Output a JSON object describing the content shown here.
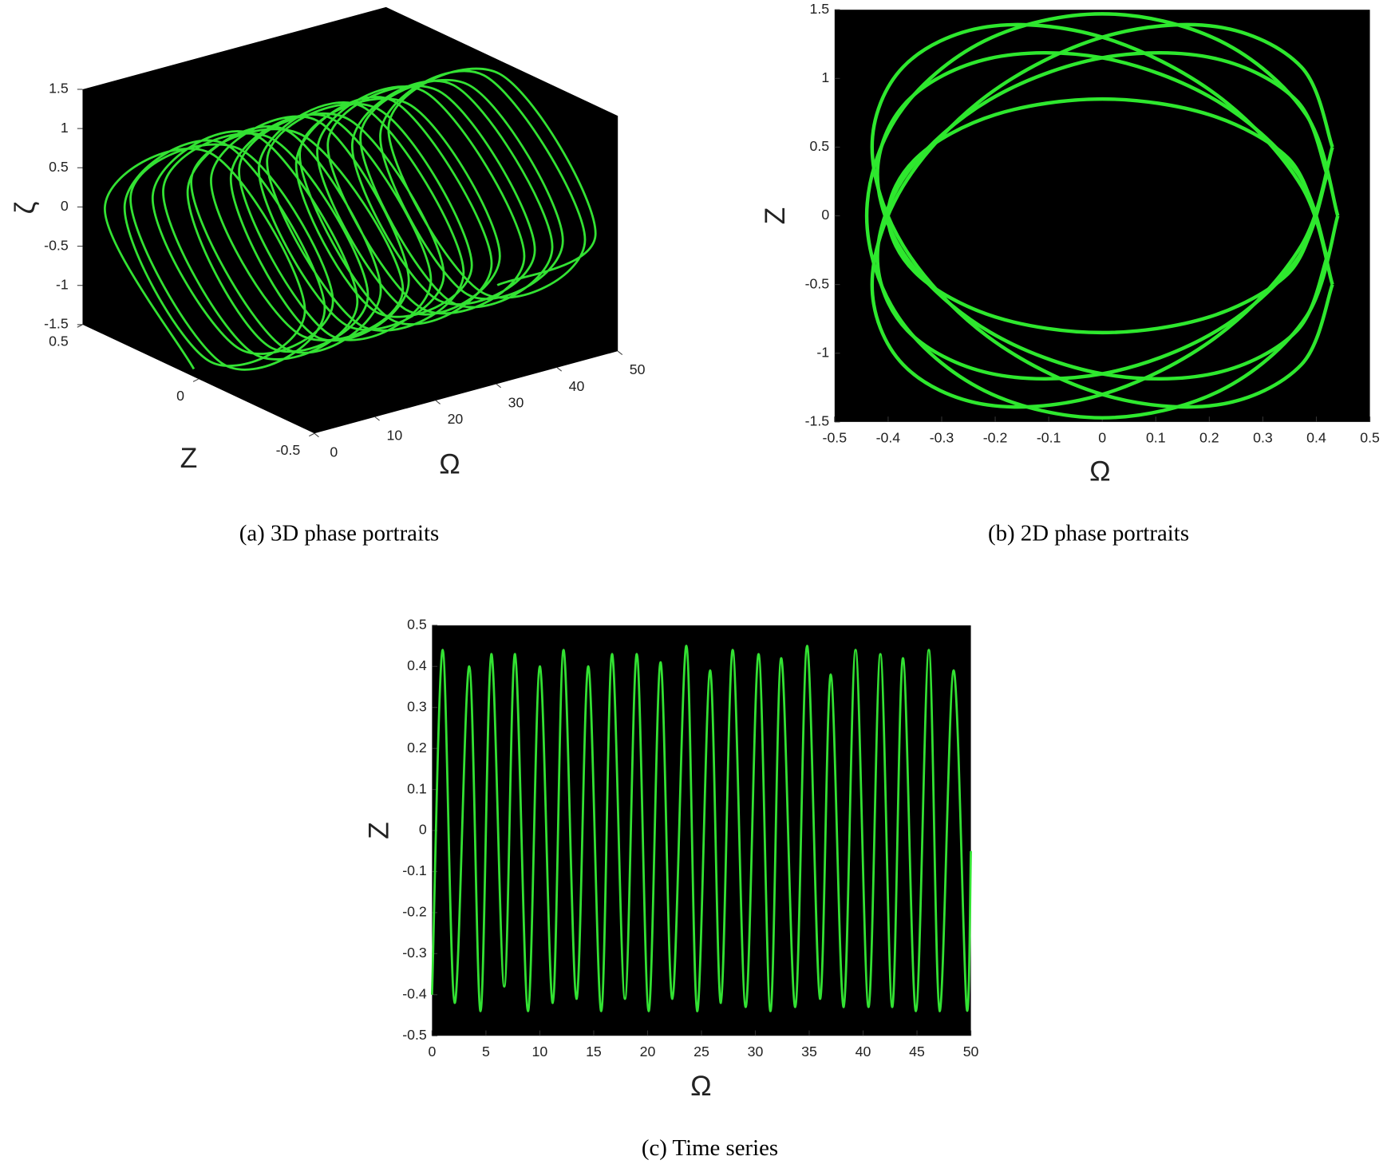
{
  "chart_data": [
    {
      "type": "line3d",
      "caption": "(a)  3D phase portraits",
      "xlabel": "Ω",
      "ylabel": "Z",
      "zlabel": "ζ",
      "color": "#33e233",
      "xlim": [
        0,
        50
      ],
      "ylim": [
        -0.5,
        0.5
      ],
      "zlim": [
        -1.5,
        1.5
      ],
      "xticks": [
        0,
        10,
        20,
        30,
        40,
        50
      ],
      "yticks": [
        -0.5,
        0,
        0.5
      ],
      "zticks": [
        -1.5,
        -1,
        -0.5,
        0,
        0.5,
        1,
        1.5
      ],
      "x": [
        0,
        0.625,
        1.25,
        1.875,
        2.5,
        3.125,
        3.75,
        4.375,
        5,
        5.625,
        6.25,
        6.875,
        7.5,
        8.125,
        8.75,
        9.375,
        10,
        10.625,
        11.25,
        11.875,
        12.5,
        13.125,
        13.75,
        14.375,
        15,
        15.625,
        16.25,
        16.875,
        17.5,
        18.125,
        18.75,
        19.375,
        20,
        20.625,
        21.25,
        21.875,
        22.5,
        23.125,
        23.75,
        24.375,
        25,
        25.625,
        26.25,
        26.875,
        27.5,
        28.125,
        28.75,
        29.375,
        30,
        30.625,
        31.25,
        31.875,
        32.5,
        33.125,
        33.75,
        34.375,
        35,
        35.625,
        36.25,
        36.875,
        37.5,
        38.125,
        38.75,
        39.375,
        40,
        40.625,
        41.25,
        41.875,
        42.5,
        43.125,
        43.75,
        44.375,
        45,
        45.625,
        46.25,
        46.875,
        47.5,
        48.125,
        48.75,
        49.375,
        50
      ],
      "y": [
        0.02,
        0.42,
        -0.02,
        -0.41,
        0.02,
        0.4,
        -0.02,
        -0.43,
        0.02,
        0.44,
        -0.02,
        -0.4,
        0.02,
        0.41,
        -0.02,
        -0.44,
        0.02,
        0.43,
        -0.02,
        -0.42,
        0.02,
        0.39,
        -0.02,
        -0.41,
        0.02,
        0.44,
        -0.02,
        -0.44,
        0.02,
        0.42,
        -0.02,
        -0.4,
        0.02,
        0.4,
        -0.02,
        -0.43,
        0.02,
        0.43,
        -0.02,
        -0.42,
        0.02,
        0.41,
        -0.02,
        -0.44,
        0.02,
        0.44,
        -0.02,
        -0.41,
        0.02,
        0.38,
        -0.02,
        -0.43,
        0.02,
        0.43,
        -0.02,
        -0.4,
        0.02,
        0.42,
        -0.02,
        -0.44,
        0.02,
        0.44,
        -0.02,
        -0.42,
        0.02,
        0.4,
        -0.02,
        -0.43,
        0.02,
        0.43,
        -0.02,
        -0.41,
        0.02,
        0.41,
        -0.02,
        -0.44,
        0.02,
        0.44,
        -0.02,
        -0.42,
        0.02
      ],
      "z": [
        -1.4,
        0.1,
        1.38,
        -0.1,
        -1.35,
        0.1,
        1.44,
        -0.1,
        -1.45,
        0.1,
        1.32,
        -0.1,
        -1.3,
        0.1,
        1.45,
        -0.1,
        -1.42,
        0.1,
        1.36,
        -0.1,
        -1.38,
        0.1,
        1.41,
        -0.1,
        -1.45,
        0.1,
        1.3,
        -0.1,
        -1.33,
        0.1,
        1.43,
        -0.1,
        -1.4,
        0.1,
        1.4,
        -0.1,
        -1.44,
        0.1,
        1.35,
        -0.1,
        -1.36,
        0.1,
        1.45,
        -0.1,
        -1.42,
        0.1,
        1.37,
        -0.1,
        -1.3,
        0.1,
        1.42,
        -0.1,
        -1.45,
        0.1,
        1.33,
        -0.1,
        -1.38,
        0.1,
        1.44,
        -0.1,
        -1.41,
        0.1,
        1.39,
        -0.1,
        -1.35,
        0.1,
        1.41,
        -0.1,
        -1.44,
        0.1,
        1.36,
        -0.1,
        -1.39,
        0.1,
        1.43,
        -0.1,
        -1.42,
        0.1,
        1.4,
        -0.1,
        -1.38
      ]
    },
    {
      "type": "line",
      "caption": "(b)  2D phase portraits",
      "xlabel": "Ω",
      "ylabel": "Z",
      "color": "#2ee82e",
      "xlim": [
        -0.5,
        0.5
      ],
      "ylim": [
        -1.5,
        1.5
      ],
      "xticks": [
        -0.5,
        -0.4,
        -0.3,
        -0.2,
        -0.1,
        0,
        0.1,
        0.2,
        0.3,
        0.4,
        0.5
      ],
      "yticks": [
        -1.5,
        -1,
        -0.5,
        0,
        0.5,
        1,
        1.5
      ],
      "x": [
        0.44,
        0.381,
        0.22,
        0,
        -0.22,
        -0.381,
        -0.44,
        -0.381,
        -0.22,
        0,
        0.22,
        0.381,
        0.44,
        null,
        0.4,
        0.346,
        0.2,
        0,
        -0.2,
        -0.346,
        -0.4,
        -0.346,
        -0.2,
        0,
        0.2,
        0.346,
        0.4,
        null,
        0.42,
        0.364,
        0.21,
        0,
        -0.21,
        -0.364,
        -0.42,
        -0.364,
        -0.21,
        0,
        0.21,
        0.364,
        0.42,
        null,
        0.42,
        0.364,
        0.21,
        0,
        -0.21,
        -0.364,
        -0.42,
        -0.364,
        -0.21,
        0,
        0.21,
        0.364,
        0.42,
        null,
        0.43,
        0.372,
        0.215,
        0,
        -0.215,
        -0.372,
        -0.43,
        -0.372,
        -0.215,
        0,
        0.215,
        0.372,
        0.43,
        null,
        0.43,
        0.372,
        0.215,
        0,
        -0.215,
        -0.372,
        -0.43,
        -0.372,
        -0.215,
        0,
        0.215,
        0.372,
        0.43
      ],
      "values": [
        0,
        0.735,
        1.273,
        1.47,
        1.273,
        0.735,
        0,
        -0.735,
        -1.273,
        -1.47,
        -1.273,
        -0.735,
        0,
        null,
        0,
        0.425,
        0.736,
        0.85,
        0.736,
        0.425,
        0,
        -0.425,
        -0.736,
        -0.85,
        -0.736,
        -0.425,
        0,
        null,
        0.3,
        0.835,
        1.146,
        1.15,
        0.846,
        0.315,
        -0.3,
        -0.835,
        -1.146,
        -1.15,
        -0.846,
        -0.315,
        0.3,
        null,
        -0.3,
        0.315,
        0.846,
        1.15,
        1.146,
        0.835,
        0.3,
        -0.315,
        -0.846,
        -1.15,
        -1.146,
        -0.835,
        -0.3,
        null,
        0.5,
        1.083,
        1.376,
        1.3,
        0.876,
        0.217,
        -0.5,
        -1.083,
        -1.376,
        -1.3,
        -0.876,
        -0.217,
        0.5,
        null,
        -0.5,
        0.217,
        0.876,
        1.3,
        1.376,
        1.083,
        0.5,
        -0.217,
        -0.876,
        -1.3,
        -1.376,
        -1.083,
        -0.5
      ]
    },
    {
      "type": "line",
      "caption": "(c)  Time series",
      "xlabel": "Ω",
      "ylabel": "Z",
      "color": "#33e233",
      "xlim": [
        0,
        50
      ],
      "ylim": [
        -0.5,
        0.5
      ],
      "xticks": [
        0,
        5,
        10,
        15,
        20,
        25,
        30,
        35,
        40,
        45,
        50
      ],
      "yticks": [
        -0.5,
        -0.4,
        -0.3,
        -0.2,
        -0.1,
        0,
        0.1,
        0.2,
        0.3,
        0.4,
        0.5
      ],
      "x": [
        0,
        0.99,
        2.1,
        3.45,
        4.5,
        5.5,
        6.7,
        7.7,
        8.9,
        10,
        11.2,
        12.2,
        13.4,
        14.5,
        15.7,
        16.7,
        17.9,
        19,
        20.1,
        21.2,
        22.3,
        23.6,
        24.6,
        25.8,
        26.8,
        27.9,
        29.1,
        30.3,
        31.4,
        32.4,
        33.7,
        34.8,
        36,
        37,
        38.2,
        39.3,
        40.5,
        41.6,
        42.7,
        43.7,
        44.9,
        46.1,
        47.1,
        48.4,
        49.6,
        50
      ],
      "values": [
        -0.4,
        0.44,
        -0.42,
        0.4,
        -0.44,
        0.43,
        -0.38,
        0.43,
        -0.44,
        0.4,
        -0.42,
        0.44,
        -0.41,
        0.4,
        -0.44,
        0.43,
        -0.41,
        0.43,
        -0.44,
        0.41,
        -0.41,
        0.45,
        -0.44,
        0.39,
        -0.42,
        0.44,
        -0.43,
        0.43,
        -0.44,
        0.42,
        -0.43,
        0.45,
        -0.41,
        0.38,
        -0.43,
        0.44,
        -0.43,
        0.43,
        -0.43,
        0.42,
        -0.44,
        0.44,
        -0.44,
        0.39,
        -0.43,
        -0.05
      ]
    }
  ]
}
